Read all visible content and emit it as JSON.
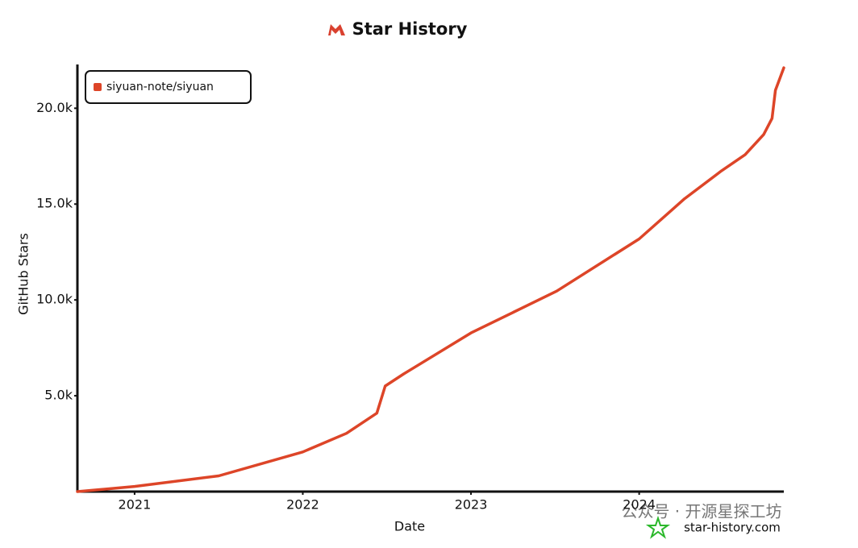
{
  "chart_data": {
    "type": "line",
    "title": "Star History",
    "x_label": "Date",
    "y_label": "GitHub Stars",
    "xlim": [
      2020.66,
      2024.86
    ],
    "xticks": [
      2021,
      2022,
      2023,
      2024
    ],
    "ylim": [
      0,
      22200
    ],
    "yticks": [
      {
        "value": 5000,
        "label": "5.0k"
      },
      {
        "value": 10000,
        "label": "10.0k"
      },
      {
        "value": 15000,
        "label": "15.0k"
      },
      {
        "value": 20000,
        "label": "20.0k"
      }
    ],
    "legend": "top-left",
    "series": [
      {
        "name": "siyuan-note/siyuan",
        "color": "#dd4528",
        "x": [
          2020.66,
          2021.0,
          2021.5,
          2022.0,
          2022.26,
          2022.44,
          2022.49,
          2022.6,
          2023.0,
          2023.51,
          2024.0,
          2024.27,
          2024.49,
          2024.63,
          2024.74,
          2024.79,
          2024.81,
          2024.86
        ],
        "values": [
          0,
          270,
          820,
          2070,
          3040,
          4090,
          5510,
          6140,
          8280,
          10460,
          13180,
          15280,
          16740,
          17580,
          18630,
          19470,
          20940,
          22110
        ]
      }
    ],
    "watermark": "star-history.com",
    "overlay_text": "公众号 · 开源星探工坊"
  }
}
